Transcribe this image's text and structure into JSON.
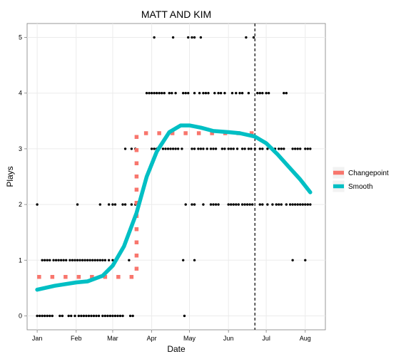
{
  "chart_data": {
    "type": "scatter",
    "title": "MATT AND KIM",
    "xlabel": "Date",
    "ylabel": "Plays",
    "xlim": [
      "2011-12-24",
      "2012-08-17"
    ],
    "ylim": [
      -0.25,
      5.25
    ],
    "grid": true,
    "legend_position": "right",
    "x_ticks": [
      {
        "date": "2012-01-01",
        "label": "Jan"
      },
      {
        "date": "2012-02-01",
        "label": "Feb"
      },
      {
        "date": "2012-03-01",
        "label": "Mar"
      },
      {
        "date": "2012-04-01",
        "label": "Apr"
      },
      {
        "date": "2012-05-01",
        "label": "May"
      },
      {
        "date": "2012-06-01",
        "label": "Jun"
      },
      {
        "date": "2012-07-01",
        "label": "Jul"
      },
      {
        "date": "2012-08-01",
        "label": "Aug"
      }
    ],
    "y_ticks": [
      0,
      1,
      2,
      3,
      4,
      5
    ],
    "vline_date": "2012-06-22",
    "series": [
      {
        "name": "Changepoint",
        "color": "#F8766D",
        "style": "dotted",
        "points": [
          [
            "2012-01-01",
            0.7
          ],
          [
            "2012-03-20",
            0.7
          ],
          [
            "2012-03-20",
            3.28
          ],
          [
            "2012-06-22",
            3.28
          ]
        ]
      },
      {
        "name": "Smooth",
        "color": "#00BFC4",
        "style": "solid",
        "points": [
          [
            "2012-01-01",
            0.47
          ],
          [
            "2012-01-15",
            0.54
          ],
          [
            "2012-02-01",
            0.6
          ],
          [
            "2012-02-10",
            0.62
          ],
          [
            "2012-02-22",
            0.72
          ],
          [
            "2012-03-01",
            0.9
          ],
          [
            "2012-03-10",
            1.25
          ],
          [
            "2012-03-20",
            1.85
          ],
          [
            "2012-03-28",
            2.5
          ],
          [
            "2012-04-05",
            2.95
          ],
          [
            "2012-04-15",
            3.3
          ],
          [
            "2012-04-24",
            3.42
          ],
          [
            "2012-05-01",
            3.42
          ],
          [
            "2012-05-10",
            3.38
          ],
          [
            "2012-05-20",
            3.32
          ],
          [
            "2012-06-01",
            3.3
          ],
          [
            "2012-06-10",
            3.28
          ],
          [
            "2012-06-22",
            3.22
          ],
          [
            "2012-07-01",
            3.1
          ],
          [
            "2012-07-10",
            2.9
          ],
          [
            "2012-07-20",
            2.65
          ],
          [
            "2012-07-28",
            2.45
          ],
          [
            "2012-08-05",
            2.22
          ]
        ]
      }
    ],
    "scatter_points": {
      "0": [
        "2012-01-01",
        "2012-01-03",
        "2012-01-05",
        "2012-01-07",
        "2012-01-09",
        "2012-01-11",
        "2012-01-13",
        "2012-01-19",
        "2012-01-21",
        "2012-01-26",
        "2012-01-28",
        "2012-01-31",
        "2012-02-03",
        "2012-02-05",
        "2012-02-07",
        "2012-02-09",
        "2012-02-11",
        "2012-02-13",
        "2012-02-15",
        "2012-02-17",
        "2012-02-19",
        "2012-02-22",
        "2012-02-24",
        "2012-02-26",
        "2012-02-28",
        "2012-03-01",
        "2012-03-03",
        "2012-03-05",
        "2012-03-07",
        "2012-03-09",
        "2012-03-15",
        "2012-03-17",
        "2012-04-27"
      ],
      "1": [
        "2012-01-05",
        "2012-01-07",
        "2012-01-09",
        "2012-01-11",
        "2012-01-14",
        "2012-01-16",
        "2012-01-18",
        "2012-01-20",
        "2012-01-22",
        "2012-01-24",
        "2012-01-27",
        "2012-01-29",
        "2012-01-31",
        "2012-02-02",
        "2012-02-04",
        "2012-02-06",
        "2012-02-08",
        "2012-02-10",
        "2012-02-12",
        "2012-02-14",
        "2012-02-16",
        "2012-02-18",
        "2012-02-20",
        "2012-02-22",
        "2012-02-24",
        "2012-02-27",
        "2012-03-01",
        "2012-03-04",
        "2012-03-14",
        "2012-04-26",
        "2012-05-05",
        "2012-07-22",
        "2012-08-01"
      ],
      "2": [
        "2012-01-01",
        "2012-02-02",
        "2012-02-20",
        "2012-02-27",
        "2012-03-01",
        "2012-03-03",
        "2012-03-09",
        "2012-03-11",
        "2012-03-16",
        "2012-03-19",
        "2012-04-28",
        "2012-05-03",
        "2012-05-05",
        "2012-05-12",
        "2012-05-18",
        "2012-05-20",
        "2012-05-22",
        "2012-05-24",
        "2012-06-01",
        "2012-06-03",
        "2012-06-05",
        "2012-06-07",
        "2012-06-09",
        "2012-06-12",
        "2012-06-14",
        "2012-06-16",
        "2012-06-18",
        "2012-06-20",
        "2012-06-26",
        "2012-06-28",
        "2012-07-02",
        "2012-07-06",
        "2012-07-09",
        "2012-07-11",
        "2012-07-13",
        "2012-07-17",
        "2012-07-20",
        "2012-07-22",
        "2012-07-24",
        "2012-07-26",
        "2012-07-28",
        "2012-07-30",
        "2012-08-01",
        "2012-08-03",
        "2012-08-05"
      ],
      "3": [
        "2012-03-11",
        "2012-03-16",
        "2012-03-19",
        "2012-04-01",
        "2012-04-03",
        "2012-04-05",
        "2012-04-07",
        "2012-04-10",
        "2012-04-12",
        "2012-04-14",
        "2012-04-16",
        "2012-04-18",
        "2012-04-20",
        "2012-04-22",
        "2012-04-25",
        "2012-05-03",
        "2012-05-05",
        "2012-05-08",
        "2012-05-10",
        "2012-05-12",
        "2012-05-15",
        "2012-05-18",
        "2012-05-20",
        "2012-05-22",
        "2012-05-27",
        "2012-05-29",
        "2012-06-01",
        "2012-06-03",
        "2012-06-05",
        "2012-06-08",
        "2012-06-12",
        "2012-06-14",
        "2012-06-17",
        "2012-06-19",
        "2012-06-22",
        "2012-06-26",
        "2012-06-28",
        "2012-07-02",
        "2012-07-06",
        "2012-07-08",
        "2012-07-11",
        "2012-07-13",
        "2012-07-15",
        "2012-07-22",
        "2012-07-24",
        "2012-07-26",
        "2012-07-28",
        "2012-08-01",
        "2012-08-03",
        "2012-08-05"
      ],
      "4": [
        "2012-03-28",
        "2012-03-30",
        "2012-04-01",
        "2012-04-03",
        "2012-04-05",
        "2012-04-07",
        "2012-04-09",
        "2012-04-11",
        "2012-04-15",
        "2012-04-17",
        "2012-04-20",
        "2012-04-26",
        "2012-04-28",
        "2012-04-30",
        "2012-05-05",
        "2012-05-09",
        "2012-05-12",
        "2012-05-14",
        "2012-05-16",
        "2012-05-21",
        "2012-05-24",
        "2012-05-26",
        "2012-05-29",
        "2012-06-04",
        "2012-06-07",
        "2012-06-10",
        "2012-06-12",
        "2012-06-17",
        "2012-06-24",
        "2012-06-26",
        "2012-06-28",
        "2012-07-01",
        "2012-07-03",
        "2012-07-15",
        "2012-07-17"
      ],
      "5": [
        "2012-04-03",
        "2012-04-18",
        "2012-04-30",
        "2012-05-03",
        "2012-05-05",
        "2012-05-10",
        "2012-06-15",
        "2012-06-21"
      ]
    }
  }
}
